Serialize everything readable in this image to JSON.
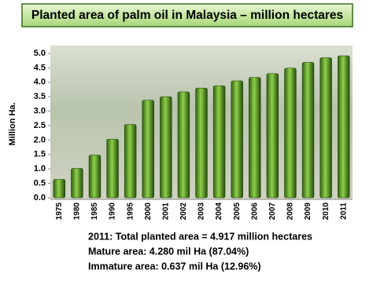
{
  "chart_data": {
    "type": "bar",
    "title": "Planted area of palm oil in Malaysia – million hectares",
    "y_label": "Million Ha.",
    "categories": [
      "1975",
      "1980",
      "1985",
      "1990",
      "1995",
      "2000",
      "2001",
      "2002",
      "2003",
      "2004",
      "2005",
      "2006",
      "2007",
      "2008",
      "2009",
      "2010",
      "2011"
    ],
    "values": [
      0.64,
      1.02,
      1.48,
      2.03,
      2.54,
      3.38,
      3.5,
      3.67,
      3.8,
      3.88,
      4.05,
      4.17,
      4.3,
      4.49,
      4.69,
      4.85,
      4.917
    ],
    "color": "#4f8f1f",
    "ylim": [
      0,
      5
    ],
    "yticks": [
      {
        "value": 0,
        "label": "0.0"
      },
      0.5,
      {
        "value": 1,
        "label": "1.0"
      },
      1.5,
      {
        "value": 2,
        "label": "2.0"
      },
      2.5,
      {
        "value": 3,
        "label": "3.0"
      },
      3.5,
      {
        "value": 4,
        "label": "4.0"
      },
      4.5,
      {
        "value": 5,
        "label": "5.0"
      }
    ],
    "grid": false,
    "annotations": [
      "2011: Total planted area = 4.917 million hectares",
      "Mature area: 4.280 mil Ha (87.04%)",
      "Immature area: 0.637 mil Ha (12.96%)"
    ]
  }
}
